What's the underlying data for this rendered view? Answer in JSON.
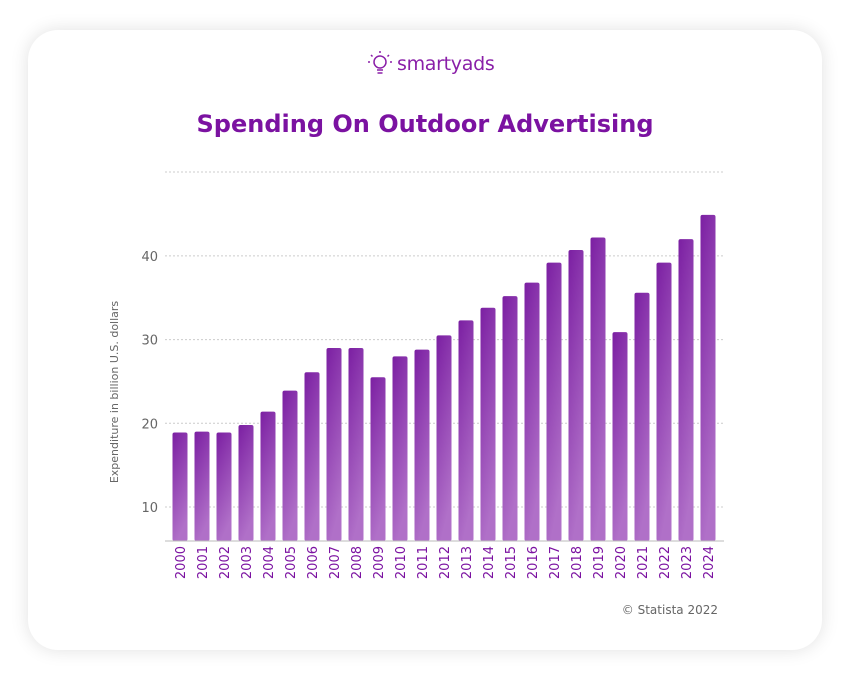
{
  "logo": {
    "text": "smartyads",
    "icon": "lightbulb-icon"
  },
  "chart_data": {
    "type": "bar",
    "title": "Spending On Outdoor Advertising",
    "ylabel": "Expenditure in billion U.S. dollars",
    "xlabel": "",
    "categories": [
      "2000",
      "2001",
      "2002",
      "2003",
      "2004",
      "2005",
      "2006",
      "2007",
      "2008",
      "2009",
      "2010",
      "2011",
      "2012",
      "2013",
      "2014",
      "2015",
      "2016",
      "2017",
      "2018",
      "2019",
      "2020",
      "2021",
      "2022",
      "2023",
      "2024"
    ],
    "values": [
      18.9,
      19.0,
      18.9,
      19.8,
      21.4,
      23.9,
      26.1,
      29.0,
      29.0,
      25.5,
      28.0,
      28.8,
      30.5,
      32.3,
      33.8,
      35.2,
      36.8,
      39.2,
      40.7,
      42.2,
      30.9,
      35.6,
      39.2,
      42.0,
      44.9
    ],
    "yticks": [
      10,
      20,
      30,
      40
    ],
    "ylim": [
      6,
      50
    ],
    "grid": true,
    "bar_color_top": "#7b1fa2",
    "bar_color_bottom": "#b070c8"
  },
  "credit": "© Statista 2022"
}
